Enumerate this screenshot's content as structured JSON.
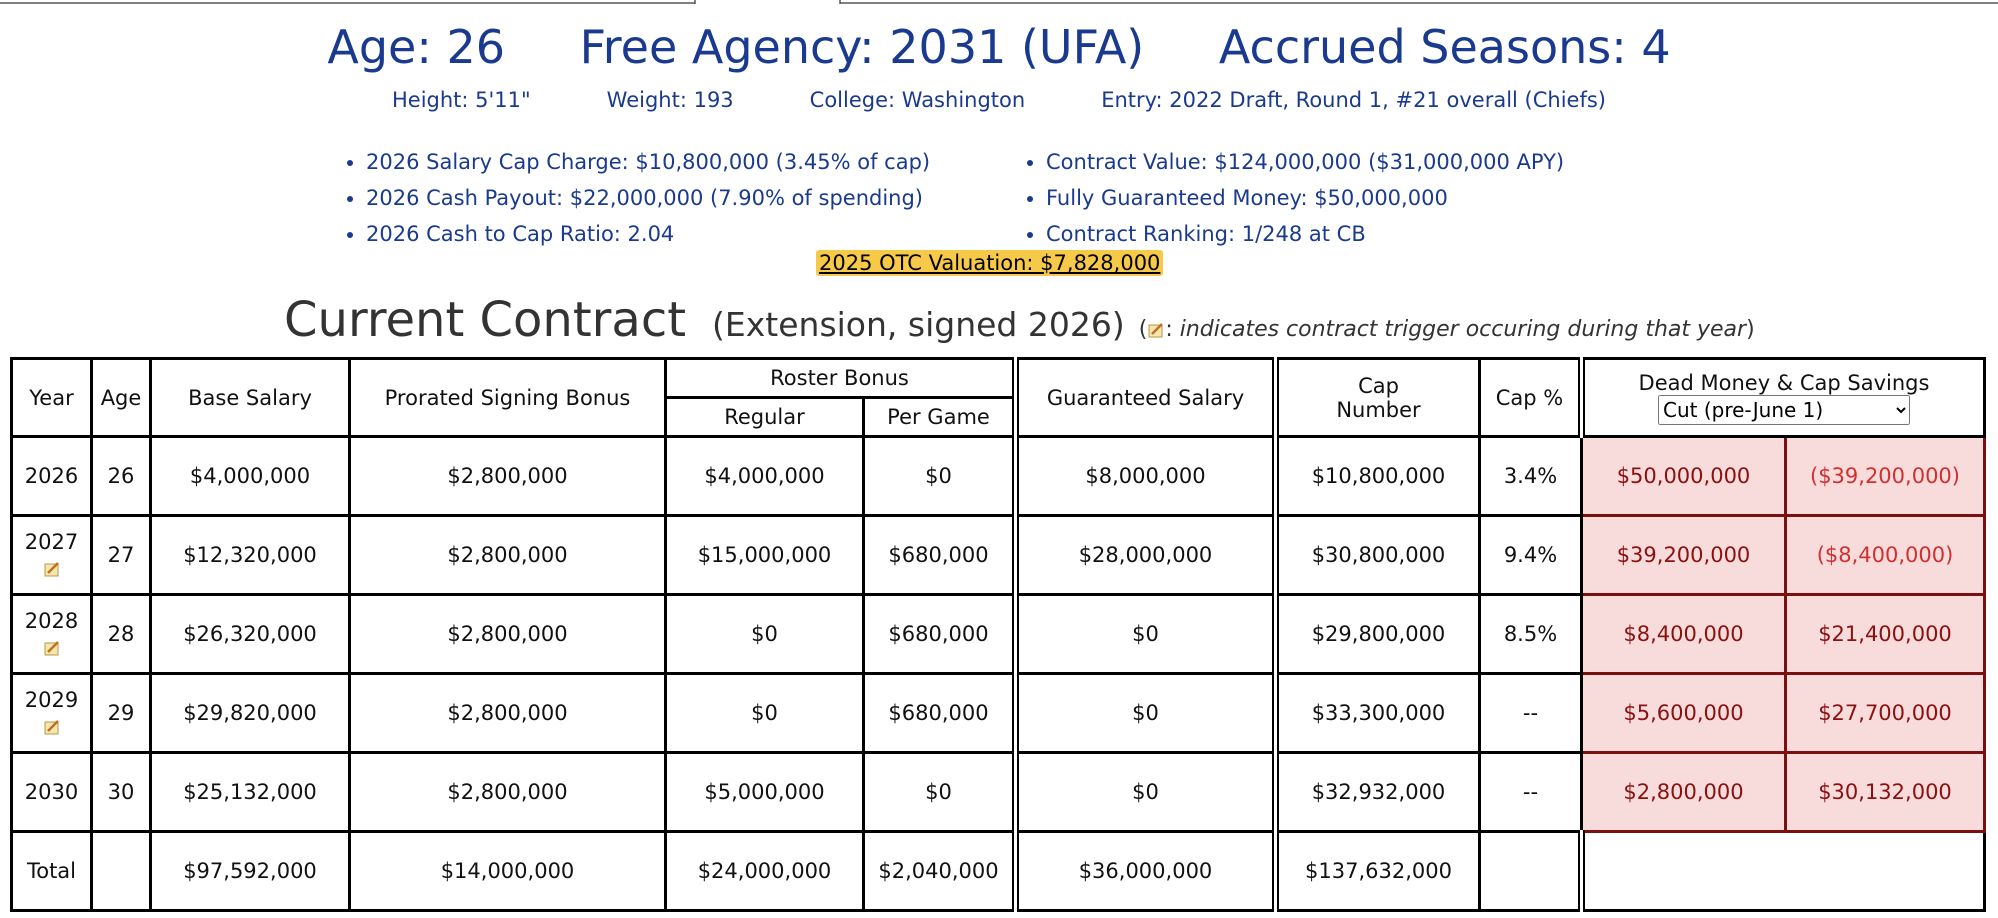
{
  "header": {
    "age": "Age: 26",
    "free_agency": "Free Agency: 2031 (UFA)",
    "accrued": "Accrued Seasons: 4",
    "details": [
      "Height: 5'11\"",
      "Weight: 193",
      "College: Washington",
      "Entry: 2022 Draft, Round 1, #21 overall (Chiefs)"
    ],
    "bullets_left": [
      "2026 Salary Cap Charge: $10,800,000 (3.45% of cap)",
      "2026 Cash Payout: $22,000,000 (7.90% of spending)",
      "2026 Cash to Cap Ratio: 2.04"
    ],
    "bullets_right": [
      "Contract Value: $124,000,000 ($31,000,000 APY)",
      "Fully Guaranteed Money: $50,000,000",
      "Contract Ranking: 1/248 at CB"
    ],
    "valuation": "2025 OTC Valuation: $7,828,000"
  },
  "contract": {
    "title": "Current Contract",
    "subtitle": "(Extension, signed 2026)",
    "note_open": "(",
    "note_sep": ":",
    "note_text": "indicates contract trigger occuring during that year",
    "note_close": ")"
  },
  "table": {
    "headers": {
      "year": "Year",
      "age": "Age",
      "base": "Base Salary",
      "prorated": "Prorated Signing Bonus",
      "roster_bonus": "Roster Bonus",
      "regular": "Regular",
      "per_game": "Per Game",
      "guaranteed": "Guaranteed Salary",
      "cap_number": "Cap Number",
      "cap_pct": "Cap %",
      "dead_money": "Dead Money & Cap Savings",
      "select_option": "Cut (pre-June 1)"
    },
    "rows": [
      {
        "trigger": false,
        "cells": [
          "2026",
          "26",
          "$4,000,000",
          "$2,800,000",
          "$4,000,000",
          "$0",
          "$8,000,000",
          "$10,800,000",
          "3.4%",
          "$50,000,000",
          "($39,200,000)"
        ]
      },
      {
        "trigger": true,
        "cells": [
          "2027",
          "27",
          "$12,320,000",
          "$2,800,000",
          "$15,000,000",
          "$680,000",
          "$28,000,000",
          "$30,800,000",
          "9.4%",
          "$39,200,000",
          "($8,400,000)"
        ]
      },
      {
        "trigger": true,
        "cells": [
          "2028",
          "28",
          "$26,320,000",
          "$2,800,000",
          "$0",
          "$680,000",
          "$0",
          "$29,800,000",
          "8.5%",
          "$8,400,000",
          "$21,400,000"
        ]
      },
      {
        "trigger": true,
        "cells": [
          "2029",
          "29",
          "$29,820,000",
          "$2,800,000",
          "$0",
          "$680,000",
          "$0",
          "$33,300,000",
          "--",
          "$5,600,000",
          "$27,700,000"
        ]
      },
      {
        "trigger": false,
        "cells": [
          "2030",
          "30",
          "$25,132,000",
          "$2,800,000",
          "$5,000,000",
          "$0",
          "$0",
          "$32,932,000",
          "--",
          "$2,800,000",
          "$30,132,000"
        ]
      },
      {
        "trigger": false,
        "cells": [
          "Total",
          null,
          "$97,592,000",
          "$14,000,000",
          "$24,000,000",
          "$2,040,000",
          "$36,000,000",
          "$137,632,000",
          null,
          null,
          null
        ]
      }
    ]
  }
}
